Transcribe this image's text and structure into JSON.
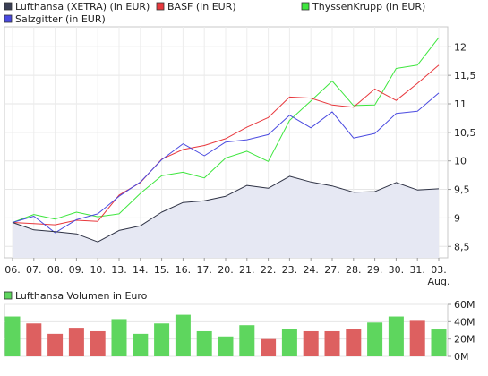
{
  "chart_data": [
    {
      "type": "line",
      "legend": [
        {
          "name": "Lufthansa (XETRA) (in EUR)",
          "color": "#3a3f55"
        },
        {
          "name": "BASF (in EUR)",
          "color": "#e8383d"
        },
        {
          "name": "ThyssenKrupp (in EUR)",
          "color": "#3ee63e"
        },
        {
          "name": "Salzgitter (in EUR)",
          "color": "#4a4ae0"
        }
      ],
      "categories": [
        "06.",
        "07.",
        "08.",
        "09.",
        "10.",
        "13.",
        "14.",
        "15.",
        "16.",
        "17.",
        "20.",
        "21.",
        "22.",
        "23.",
        "24.",
        "27.",
        "28.",
        "29.",
        "30.",
        "31.",
        "03.\nAug."
      ],
      "x_tick_labels": [
        "06.",
        "07.",
        "08.",
        "09.",
        "10.",
        "13.",
        "14.",
        "15.",
        "16.",
        "17.",
        "20.",
        "21.",
        "22.",
        "23.",
        "24.",
        "27.",
        "28.",
        "29.",
        "30.",
        "31.",
        "03."
      ],
      "x_tick_sublabel": "Aug.",
      "y_ticks": [
        "8,5",
        "9",
        "9,5",
        "10",
        "10,5",
        "11",
        "11,5",
        "12"
      ],
      "ylim": [
        8.3,
        12.35
      ],
      "y_tick_values": [
        8.5,
        9,
        9.5,
        10,
        10.5,
        11,
        11.5,
        12
      ],
      "grid": true,
      "series": [
        {
          "name": "Lufthansa (XETRA) (in EUR)",
          "color": "#2f3345",
          "fill": "#e6e8f3",
          "values": [
            8.92,
            8.79,
            8.76,
            8.72,
            8.58,
            8.78,
            8.86,
            9.1,
            9.27,
            9.3,
            9.38,
            9.57,
            9.52,
            9.73,
            9.63,
            9.56,
            9.45,
            9.46,
            9.62,
            9.49,
            9.51
          ]
        },
        {
          "name": "BASF (in EUR)",
          "color": "#e8383d",
          "values": [
            8.92,
            8.9,
            8.88,
            8.96,
            8.94,
            9.4,
            9.62,
            10.03,
            10.2,
            10.27,
            10.39,
            10.59,
            10.76,
            11.12,
            11.1,
            10.98,
            10.94,
            11.26,
            11.06,
            11.36,
            11.68
          ]
        },
        {
          "name": "ThyssenKrupp (in EUR)",
          "color": "#3ee63e",
          "values": [
            8.92,
            9.06,
            8.98,
            9.1,
            9.02,
            9.07,
            9.43,
            9.74,
            9.8,
            9.7,
            10.05,
            10.17,
            9.99,
            10.71,
            11.05,
            11.4,
            10.97,
            10.98,
            11.62,
            11.68,
            12.16
          ]
        },
        {
          "name": "Salzgitter (in EUR)",
          "color": "#4a4ae0",
          "values": [
            8.92,
            9.03,
            8.74,
            8.97,
            9.07,
            9.38,
            9.63,
            10.02,
            10.3,
            10.09,
            10.33,
            10.37,
            10.46,
            10.8,
            10.58,
            10.86,
            10.4,
            10.48,
            10.83,
            10.87,
            11.19
          ]
        }
      ]
    },
    {
      "type": "bar",
      "legend": [
        {
          "name": "Lufthansa Volumen in Euro",
          "color": "#5ed65e"
        }
      ],
      "y_ticks": [
        "0M",
        "20M",
        "40M",
        "60M"
      ],
      "y_tick_values": [
        0,
        20,
        40,
        60
      ],
      "ylim": [
        0,
        60
      ],
      "grid": true,
      "up_color": "#5ed65e",
      "down_color": "#dd6060",
      "values": [
        46,
        38,
        26,
        33,
        29,
        43,
        26,
        38,
        48,
        29,
        23,
        36,
        20,
        32,
        29,
        29,
        32,
        39,
        46,
        41,
        31
      ],
      "bar_colors": [
        "#5ed65e",
        "#dd6060",
        "#dd6060",
        "#dd6060",
        "#dd6060",
        "#5ed65e",
        "#5ed65e",
        "#5ed65e",
        "#5ed65e",
        "#5ed65e",
        "#5ed65e",
        "#5ed65e",
        "#dd6060",
        "#5ed65e",
        "#dd6060",
        "#dd6060",
        "#dd6060",
        "#5ed65e",
        "#5ed65e",
        "#dd6060",
        "#5ed65e"
      ]
    }
  ]
}
